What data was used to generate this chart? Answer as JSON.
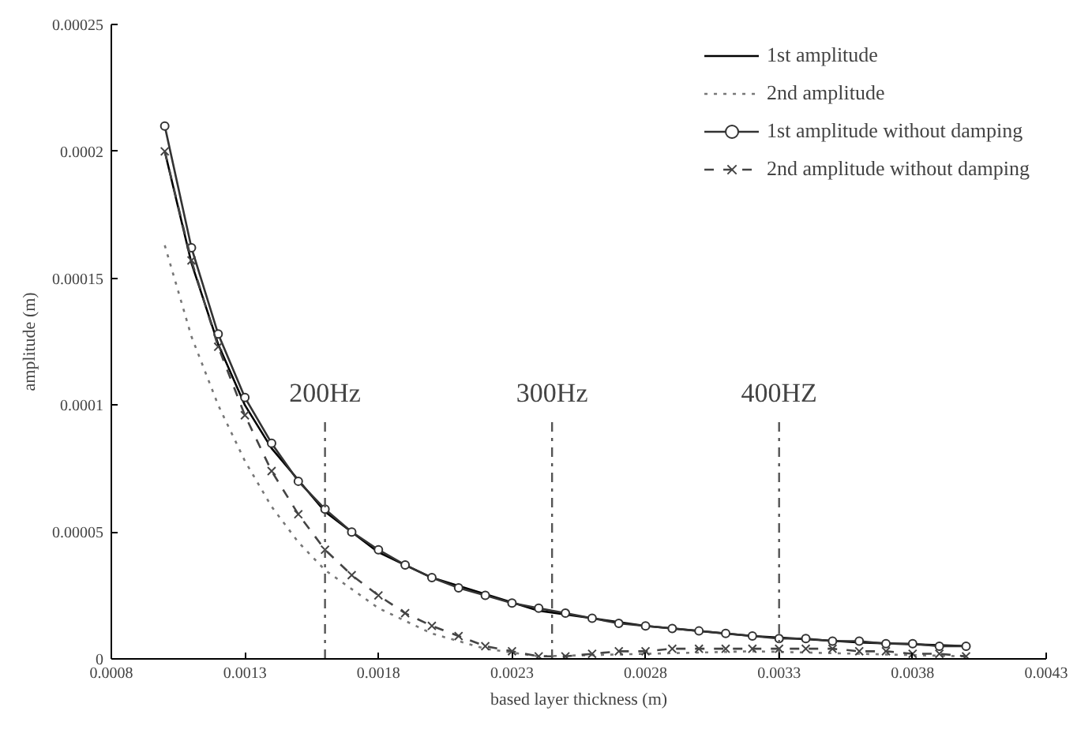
{
  "chart_data": {
    "type": "line",
    "xlabel": "based layer thickness (m)",
    "ylabel": "amplitude (m)",
    "xlim": [
      0.0008,
      0.0043
    ],
    "xticks": [
      {
        "value": 0.0008,
        "label": "0.0008"
      },
      {
        "value": 0.0013,
        "label": "0.0013"
      },
      {
        "value": 0.0018,
        "label": "0.0018"
      },
      {
        "value": 0.0023,
        "label": "0.0023"
      },
      {
        "value": 0.0028,
        "label": "0.0028"
      },
      {
        "value": 0.0033,
        "label": "0.0033"
      },
      {
        "value": 0.0038,
        "label": "0.0038"
      },
      {
        "value": 0.0043,
        "label": "0.0043"
      }
    ],
    "ylim": [
      0,
      0.00025
    ],
    "yticks": [
      0,
      {
        "value": 5e-05,
        "label": "0.00005"
      },
      {
        "value": 0.0001,
        "label": "0.0001"
      },
      {
        "value": 0.00015,
        "label": "0.00015"
      },
      {
        "value": 0.0002,
        "label": "0.0002"
      },
      {
        "value": 0.00025,
        "label": "0.00025"
      }
    ],
    "grid": false,
    "legend": "top right",
    "series": [
      {
        "name": "1st amplitude",
        "color": "#000000",
        "line_style": "solid",
        "marker": "none",
        "x": [
          0.001,
          0.0011,
          0.0012,
          0.0013,
          0.0014,
          0.0016,
          0.0018,
          0.002,
          0.0024,
          0.0028,
          0.0032,
          0.0036,
          0.004
        ],
        "values": [
          0.0002,
          0.000156,
          0.000124,
          0.0001,
          8.3e-05,
          5.8e-05,
          4.2e-05,
          3.2e-05,
          1.9e-05,
          1.3e-05,
          9e-06,
          6.5e-06,
          5e-06
        ]
      },
      {
        "name": "2nd amplitude",
        "color": "#777777",
        "line_style": "dotted",
        "marker": "none",
        "x": [
          0.001,
          0.0011,
          0.0012,
          0.0013,
          0.0014,
          0.0015,
          0.0016,
          0.0018,
          0.002,
          0.0022,
          0.0024,
          0.0028,
          0.0032,
          0.0036,
          0.004
        ],
        "values": [
          0.000163,
          0.000127,
          0.0001,
          7.8e-05,
          6e-05,
          4.6e-05,
          3.5e-05,
          2e-05,
          1e-05,
          4e-06,
          1e-06,
          2e-06,
          3e-06,
          2e-06,
          1e-06
        ]
      },
      {
        "name": "1st amplitude without damping",
        "color": "#333333",
        "line_style": "solid",
        "marker": "circle",
        "x": [
          0.001,
          0.0011,
          0.0012,
          0.0013,
          0.0014,
          0.0015,
          0.0016,
          0.0017,
          0.0018,
          0.0019,
          0.002,
          0.0021,
          0.0022,
          0.0023,
          0.0024,
          0.0025,
          0.0026,
          0.0027,
          0.0028,
          0.0029,
          0.003,
          0.0031,
          0.0032,
          0.0033,
          0.0034,
          0.0035,
          0.0036,
          0.0037,
          0.0038,
          0.0039,
          0.004
        ],
        "values": [
          0.00021,
          0.000162,
          0.000128,
          0.000103,
          8.5e-05,
          7e-05,
          5.9e-05,
          5e-05,
          4.3e-05,
          3.7e-05,
          3.2e-05,
          2.8e-05,
          2.5e-05,
          2.2e-05,
          2e-05,
          1.8e-05,
          1.6e-05,
          1.4e-05,
          1.3e-05,
          1.2e-05,
          1.1e-05,
          1e-05,
          9e-06,
          8e-06,
          8e-06,
          7e-06,
          7e-06,
          6e-06,
          6e-06,
          5e-06,
          5e-06
        ]
      },
      {
        "name": "2nd amplitude without damping",
        "color": "#444444",
        "line_style": "dashed",
        "marker": "cross",
        "x": [
          0.001,
          0.0011,
          0.0012,
          0.0013,
          0.0014,
          0.0015,
          0.0016,
          0.0017,
          0.0018,
          0.0019,
          0.002,
          0.0021,
          0.0022,
          0.0023,
          0.0024,
          0.0025,
          0.0026,
          0.0027,
          0.0028,
          0.0029,
          0.003,
          0.0031,
          0.0032,
          0.0033,
          0.0034,
          0.0035,
          0.0036,
          0.0037,
          0.0038,
          0.0039,
          0.004
        ],
        "values": [
          0.0002,
          0.000157,
          0.000123,
          9.6e-05,
          7.4e-05,
          5.7e-05,
          4.3e-05,
          3.3e-05,
          2.5e-05,
          1.8e-05,
          1.3e-05,
          9e-06,
          5e-06,
          3e-06,
          1e-06,
          1e-06,
          2e-06,
          3e-06,
          3e-06,
          4e-06,
          4e-06,
          4e-06,
          4e-06,
          4e-06,
          4e-06,
          4e-06,
          3e-06,
          3e-06,
          2e-06,
          2e-06,
          1e-06
        ]
      }
    ],
    "ref_lines": [
      {
        "axis": "x",
        "value": 0.0016,
        "label": "200Hz",
        "color": "#555555",
        "line_style": "dashdot"
      },
      {
        "axis": "x",
        "value": 0.00245,
        "label": "300Hz",
        "color": "#555555",
        "line_style": "dashdot"
      },
      {
        "axis": "x",
        "value": 0.0033,
        "label": "400HZ",
        "color": "#555555",
        "line_style": "dashdot"
      }
    ]
  }
}
